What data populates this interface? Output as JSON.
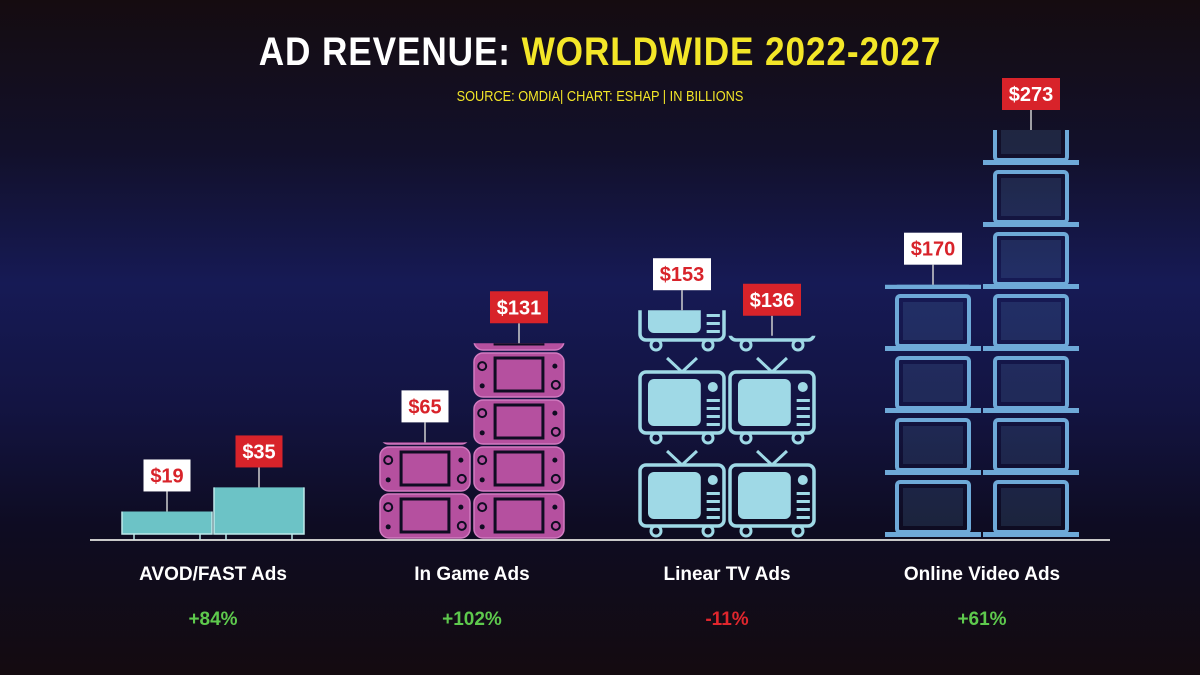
{
  "title": {
    "part1": "AD REVENUE:",
    "part2": "WORLDWIDE 2022-2027"
  },
  "subtitle": "SOURCE: OMDIA| CHART: ESHAP | IN BILLIONS",
  "colors": {
    "title_white": "#ffffff",
    "title_yellow": "#f3e628",
    "label_red": "#d8232a",
    "positive": "#5ec94d",
    "negative": "#e0262d",
    "tv_fill": "#9fd9e6",
    "game_fill": "#b5509f",
    "avod_fill": "#6cc3c6",
    "laptop_fill": "#6ea9d8",
    "baseline": "#c9c9c9"
  },
  "chart_data": {
    "type": "bar",
    "style": "pictorial stacked icons, paired bars per category",
    "categories": [
      "AVOD/FAST Ads",
      "In Game Ads",
      "Linear TV Ads",
      "Online Video Ads"
    ],
    "icons": [
      "flat-tv-icon",
      "handheld-console-icon",
      "crt-tv-icon",
      "laptop-icon"
    ],
    "series": [
      {
        "values": [
          19,
          65,
          153,
          170
        ],
        "labels": [
          "$19",
          "$65",
          "$153",
          "$170"
        ],
        "label_style": "white box, red text"
      },
      {
        "values": [
          35,
          131,
          136,
          273
        ],
        "labels": [
          "$35",
          "$131",
          "$136",
          "$273"
        ],
        "label_style": "red box, white text"
      }
    ],
    "changes": [
      "+84%",
      "+102%",
      "-11%",
      "+61%"
    ],
    "change_direction": [
      "up",
      "up",
      "down",
      "up"
    ],
    "ylim": [
      0,
      280
    ],
    "unit": "billions USD",
    "grid": false,
    "legend": "none"
  }
}
